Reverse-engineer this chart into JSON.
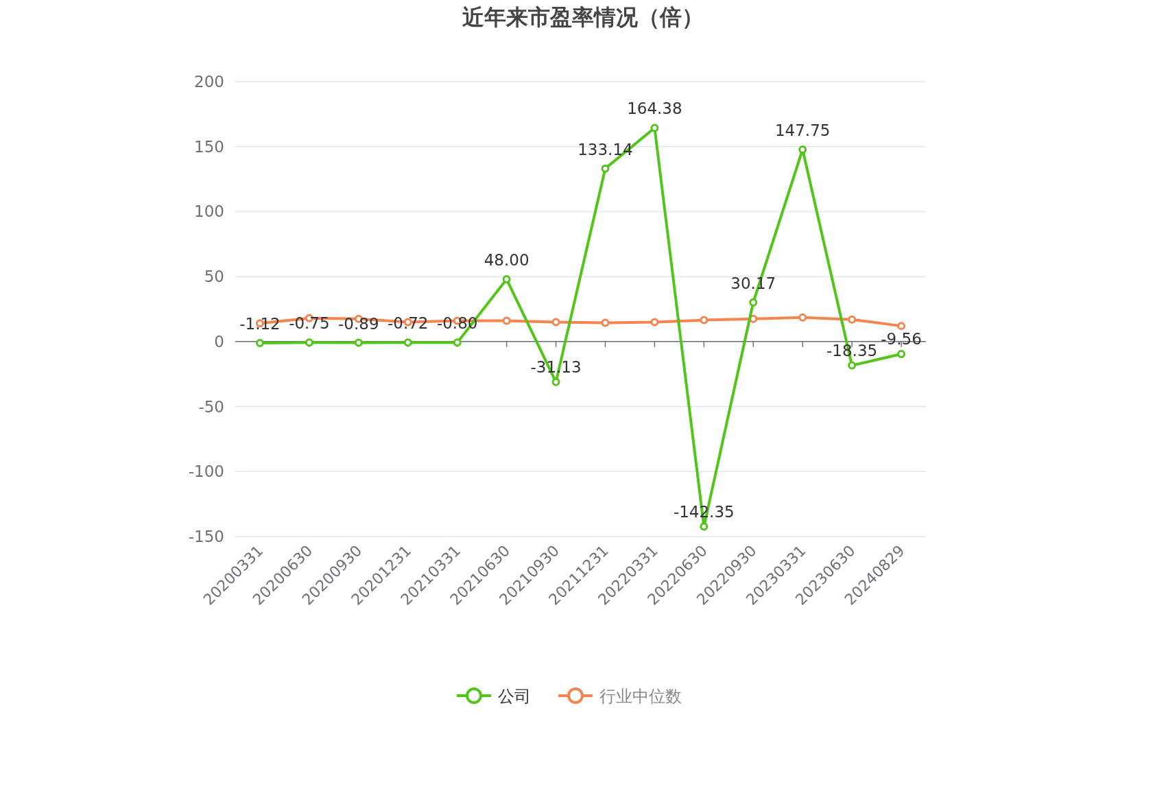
{
  "chart_data": {
    "type": "line",
    "title": "近年来市盈率情况（倍）",
    "categories": [
      "20200331",
      "20200630",
      "20200930",
      "20201231",
      "20210331",
      "20210630",
      "20210930",
      "20211231",
      "20220331",
      "20220630",
      "20220930",
      "20230331",
      "20230630",
      "20240829"
    ],
    "series": [
      {
        "name": "公司",
        "color": "#52c41a",
        "values": [
          -1.12,
          -0.75,
          -0.89,
          -0.72,
          -0.8,
          48.0,
          -31.13,
          133.14,
          164.38,
          -142.35,
          30.17,
          147.75,
          -18.35,
          -9.56
        ],
        "value_labels": [
          "-1.12",
          "-0.75",
          "-0.89",
          "-0.72",
          "-0.80",
          "48.00",
          "-31.13",
          "133.14",
          "164.38",
          "-142.35",
          "30.17",
          "147.75",
          "-18.35",
          "-9.56"
        ]
      },
      {
        "name": "行业中位数",
        "color": "#f5844f",
        "values": [
          14,
          18,
          17.5,
          15,
          16,
          16,
          15,
          14.5,
          15,
          16.5,
          17.5,
          18.5,
          17,
          12
        ]
      }
    ],
    "ylim": [
      -150,
      200
    ],
    "yticks": [
      -150,
      -100,
      -50,
      0,
      50,
      100,
      150,
      200
    ],
    "grid": "y",
    "legend": "bottom",
    "marker": "circle",
    "line_style": "solid"
  }
}
